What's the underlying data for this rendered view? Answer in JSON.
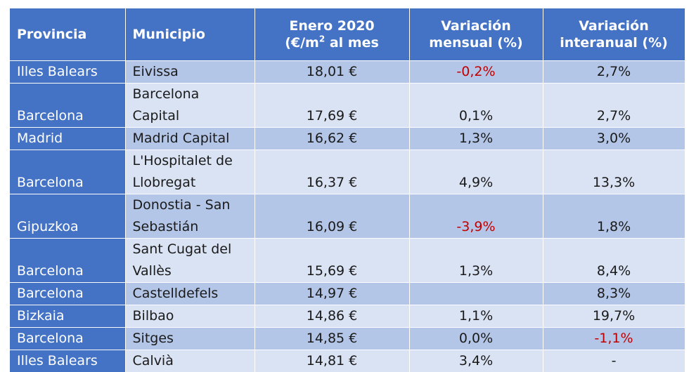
{
  "header": {
    "provincia": "Provincia",
    "municipio": "Municipio",
    "enero_line1": "Enero 2020",
    "enero_line2_pre": "(€/m",
    "enero_sup": "2",
    "enero_line2_post": " al mes",
    "mensual_line1": "Variación",
    "mensual_line2": "mensual (%)",
    "interanual_line1": "Variación",
    "interanual_line2": "interanual (%)"
  },
  "rows": [
    {
      "provincia": "Illes Balears",
      "municipio": [
        "Eivissa"
      ],
      "precio": "18,01 €",
      "mensual": "-0,2%",
      "interanual": "2,7%",
      "mensual_neg": true,
      "interanual_neg": false
    },
    {
      "provincia": "Barcelona",
      "municipio": [
        "Barcelona",
        "Capital"
      ],
      "precio": "17,69 €",
      "mensual": "0,1%",
      "interanual": "2,7%",
      "mensual_neg": false,
      "interanual_neg": false
    },
    {
      "provincia": "Madrid",
      "municipio": [
        "Madrid Capital"
      ],
      "precio": "16,62 €",
      "mensual": "1,3%",
      "interanual": "3,0%",
      "mensual_neg": false,
      "interanual_neg": false
    },
    {
      "provincia": "Barcelona",
      "municipio": [
        "L'Hospitalet de",
        "Llobregat"
      ],
      "precio": "16,37 €",
      "mensual": "4,9%",
      "interanual": "13,3%",
      "mensual_neg": false,
      "interanual_neg": false
    },
    {
      "provincia": "Gipuzkoa",
      "municipio": [
        "Donostia - San",
        "Sebastián"
      ],
      "precio": "16,09 €",
      "mensual": "-3,9%",
      "interanual": "1,8%",
      "mensual_neg": true,
      "interanual_neg": false
    },
    {
      "provincia": "Barcelona",
      "municipio": [
        "Sant Cugat del",
        "Vallès"
      ],
      "precio": "15,69 €",
      "mensual": "1,3%",
      "interanual": "8,4%",
      "mensual_neg": false,
      "interanual_neg": false
    },
    {
      "provincia": "Barcelona",
      "municipio": [
        "Castelldefels"
      ],
      "precio": "14,97 €",
      "mensual": "",
      "interanual": "8,3%",
      "mensual_neg": false,
      "interanual_neg": false
    },
    {
      "provincia": "Bizkaia",
      "municipio": [
        "Bilbao"
      ],
      "precio": "14,86 €",
      "mensual": "1,1%",
      "interanual": "19,7%",
      "mensual_neg": false,
      "interanual_neg": false
    },
    {
      "provincia": "Barcelona",
      "municipio": [
        "Sitges"
      ],
      "precio": "14,85 €",
      "mensual": "0,0%",
      "interanual": "-1,1%",
      "mensual_neg": false,
      "interanual_neg": true
    },
    {
      "provincia": "Illes Balears",
      "municipio": [
        "Calvià"
      ],
      "precio": "14,81 €",
      "mensual": "3,4%",
      "interanual": "-",
      "mensual_neg": false,
      "interanual_neg": false
    }
  ]
}
